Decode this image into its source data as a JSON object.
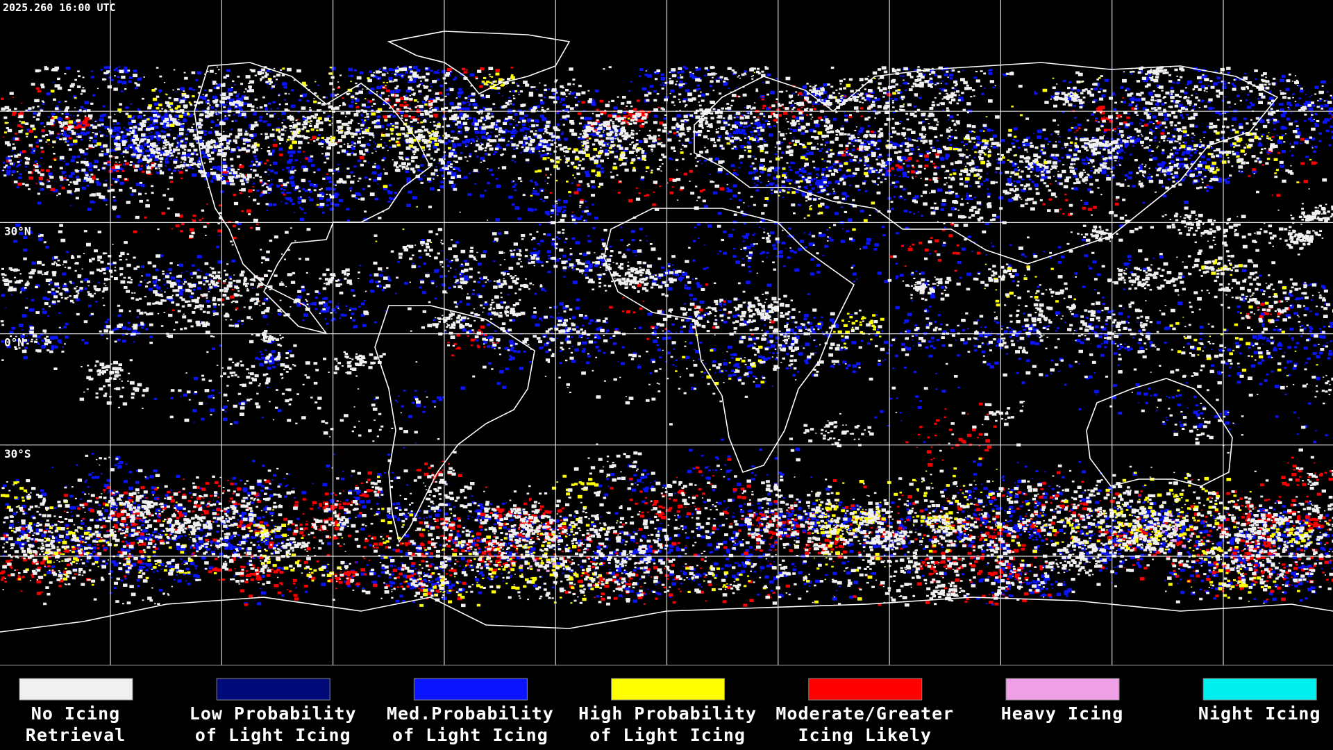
{
  "header": {
    "timestamp": "2025.260 16:00 UTC"
  },
  "grid": {
    "lat_labels": [
      "30°N",
      "0°N",
      "30°S"
    ]
  },
  "legend": {
    "items": [
      {
        "lines": [
          "No Icing",
          "Retrieval"
        ],
        "color": "#f0f0f0"
      },
      {
        "lines": [
          "Low Probability",
          "of Light Icing"
        ],
        "color": "#000a78"
      },
      {
        "lines": [
          "Med.Probability",
          "of Light Icing"
        ],
        "color": "#0a14ff"
      },
      {
        "lines": [
          "High Probability",
          "of Light Icing"
        ],
        "color": "#ffff00"
      },
      {
        "lines": [
          "Moderate/Greater",
          "Icing Likely"
        ],
        "color": "#ff0000"
      },
      {
        "lines": [
          "Heavy Icing"
        ],
        "color": "#f0a0e6"
      },
      {
        "lines": [
          "Night Icing"
        ],
        "color": "#00f0f0"
      }
    ]
  }
}
